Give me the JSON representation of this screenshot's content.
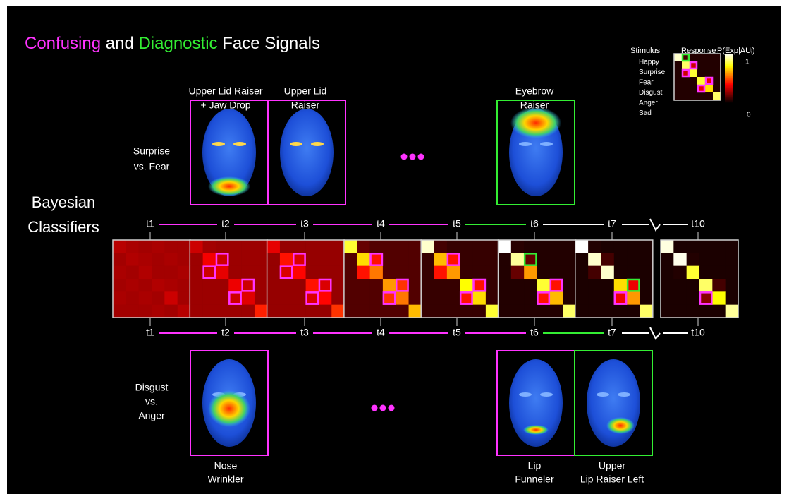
{
  "title": {
    "part1": "Confusing",
    "part2": "and",
    "part3": "Diagnostic",
    "part4": "Face Signals"
  },
  "legend": {
    "stimulus": "Stimulus",
    "response": "Response",
    "probability": "P(Exp|AUᵢ)",
    "max": 1,
    "min": 0,
    "emotions": [
      "Happy",
      "Surprise",
      "Fear",
      "Disgust",
      "Anger",
      "Sad"
    ],
    "matrix": [
      [
        0.95,
        0.1,
        0.05,
        0.05,
        0.05,
        0.05
      ],
      [
        0.05,
        0.85,
        0.3,
        0.05,
        0.05,
        0.05
      ],
      [
        0.05,
        0.3,
        0.8,
        0.05,
        0.05,
        0.05
      ],
      [
        0.05,
        0.05,
        0.05,
        0.8,
        0.35,
        0.05
      ],
      [
        0.05,
        0.05,
        0.05,
        0.35,
        0.7,
        0.05
      ],
      [
        0.05,
        0.05,
        0.05,
        0.05,
        0.05,
        0.85
      ]
    ]
  },
  "surprise_fear": {
    "label": [
      "Surprise",
      "vs. Fear"
    ],
    "faces": [
      {
        "label": [
          "Upper Lid Raiser",
          "+ Jaw Drop"
        ]
      },
      {
        "label": [
          "Upper Lid",
          "Raiser"
        ]
      },
      {
        "label": [
          "Eyebrow",
          "Raiser"
        ]
      }
    ]
  },
  "disgust_anger": {
    "label": [
      "Disgust",
      "vs.",
      "Anger"
    ],
    "faces": [
      {
        "label": [
          "Nose",
          "Wrinkler"
        ]
      },
      {
        "label": [
          "Lip",
          "Funneler"
        ]
      },
      {
        "label": [
          "Upper",
          "Lip Raiser Left"
        ]
      }
    ]
  },
  "classifiers": [
    "Bayesian",
    "Classifiers"
  ],
  "timeline_top": [
    "t1",
    "t2",
    "t3",
    "t4",
    "t5",
    "t6",
    "t7",
    "t10"
  ],
  "timeline_bottom": [
    "t1",
    "t2",
    "t3",
    "t4",
    "t5",
    "t6",
    "t7",
    "t10"
  ],
  "matrices": [
    [
      [
        0.27,
        0.25,
        0.24,
        0.25,
        0.24,
        0.24
      ],
      [
        0.24,
        0.26,
        0.25,
        0.24,
        0.25,
        0.24
      ],
      [
        0.25,
        0.24,
        0.26,
        0.24,
        0.24,
        0.25
      ],
      [
        0.24,
        0.25,
        0.24,
        0.26,
        0.25,
        0.24
      ],
      [
        0.25,
        0.24,
        0.25,
        0.24,
        0.3,
        0.24
      ],
      [
        0.24,
        0.24,
        0.24,
        0.25,
        0.24,
        0.27
      ]
    ],
    [
      [
        0.3,
        0.24,
        0.23,
        0.23,
        0.23,
        0.23
      ],
      [
        0.23,
        0.36,
        0.3,
        0.23,
        0.23,
        0.23
      ],
      [
        0.23,
        0.3,
        0.34,
        0.23,
        0.23,
        0.23
      ],
      [
        0.23,
        0.23,
        0.23,
        0.35,
        0.3,
        0.23
      ],
      [
        0.23,
        0.23,
        0.23,
        0.3,
        0.33,
        0.23
      ],
      [
        0.23,
        0.23,
        0.23,
        0.23,
        0.23,
        0.42
      ]
    ],
    [
      [
        0.34,
        0.22,
        0.22,
        0.22,
        0.22,
        0.22
      ],
      [
        0.22,
        0.4,
        0.32,
        0.22,
        0.22,
        0.22
      ],
      [
        0.22,
        0.32,
        0.38,
        0.22,
        0.22,
        0.22
      ],
      [
        0.22,
        0.22,
        0.22,
        0.4,
        0.32,
        0.22
      ],
      [
        0.22,
        0.22,
        0.22,
        0.32,
        0.38,
        0.22
      ],
      [
        0.22,
        0.22,
        0.22,
        0.22,
        0.22,
        0.45
      ]
    ],
    [
      [
        0.8,
        0.15,
        0.12,
        0.12,
        0.12,
        0.12
      ],
      [
        0.12,
        0.7,
        0.4,
        0.12,
        0.12,
        0.12
      ],
      [
        0.12,
        0.4,
        0.55,
        0.12,
        0.12,
        0.12
      ],
      [
        0.12,
        0.12,
        0.12,
        0.6,
        0.45,
        0.12
      ],
      [
        0.12,
        0.12,
        0.12,
        0.45,
        0.55,
        0.12
      ],
      [
        0.12,
        0.12,
        0.12,
        0.12,
        0.12,
        0.65
      ]
    ],
    [
      [
        0.95,
        0.1,
        0.08,
        0.08,
        0.08,
        0.08
      ],
      [
        0.08,
        0.65,
        0.4,
        0.08,
        0.08,
        0.08
      ],
      [
        0.08,
        0.4,
        0.6,
        0.08,
        0.08,
        0.08
      ],
      [
        0.08,
        0.08,
        0.08,
        0.75,
        0.4,
        0.08
      ],
      [
        0.08,
        0.08,
        0.08,
        0.4,
        0.7,
        0.08
      ],
      [
        0.08,
        0.08,
        0.08,
        0.08,
        0.08,
        0.8
      ]
    ],
    [
      [
        1,
        0.06,
        0.05,
        0.05,
        0.05,
        0.05
      ],
      [
        0.05,
        0.9,
        0.15,
        0.05,
        0.05,
        0.05
      ],
      [
        0.05,
        0.15,
        0.6,
        0.05,
        0.05,
        0.05
      ],
      [
        0.05,
        0.05,
        0.05,
        0.8,
        0.4,
        0.05
      ],
      [
        0.05,
        0.05,
        0.05,
        0.4,
        0.65,
        0.05
      ],
      [
        0.05,
        0.05,
        0.05,
        0.05,
        0.05,
        0.85
      ]
    ],
    [
      [
        1,
        0.05,
        0.04,
        0.04,
        0.04,
        0.04
      ],
      [
        0.04,
        0.95,
        0.1,
        0.04,
        0.04,
        0.04
      ],
      [
        0.04,
        0.1,
        0.95,
        0.04,
        0.04,
        0.04
      ],
      [
        0.04,
        0.04,
        0.04,
        0.7,
        0.35,
        0.04
      ],
      [
        0.04,
        0.04,
        0.04,
        0.35,
        0.6,
        0.04
      ],
      [
        0.04,
        0.04,
        0.04,
        0.04,
        0.04,
        0.85
      ]
    ],
    [
      [
        0.97,
        0.04,
        0.04,
        0.04,
        0.04,
        0.04
      ],
      [
        0.04,
        0.98,
        0.05,
        0.04,
        0.04,
        0.04
      ],
      [
        0.04,
        0.05,
        0.8,
        0.04,
        0.04,
        0.04
      ],
      [
        0.04,
        0.04,
        0.04,
        0.85,
        0.1,
        0.04
      ],
      [
        0.04,
        0.04,
        0.04,
        0.2,
        0.75,
        0.04
      ],
      [
        0.04,
        0.04,
        0.04,
        0.04,
        0.04,
        0.9
      ]
    ]
  ]
}
